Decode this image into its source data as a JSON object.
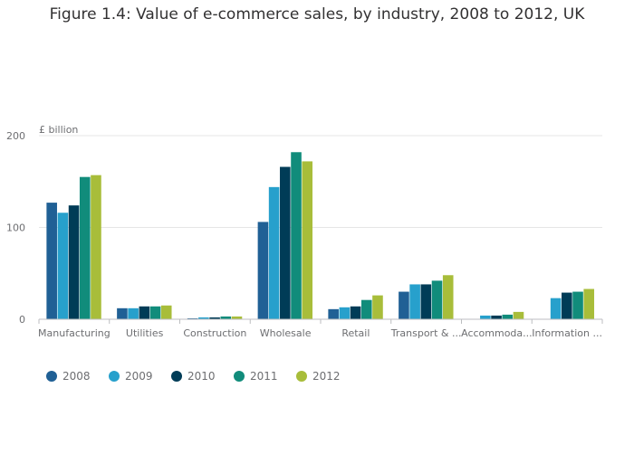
{
  "chart_data": {
    "type": "bar",
    "title": "Figure 1.4: Value of e-commerce sales, by industry, 2008 to 2012, UK",
    "ylabel": "£ billion",
    "xlabel": "",
    "ylim": [
      0,
      200
    ],
    "yticks": [
      0,
      100,
      200
    ],
    "grid": true,
    "legend_position": "bottom-left",
    "categories": [
      "Manufacturing",
      "Utilities",
      "Construction",
      "Wholesale",
      "Retail",
      "Transport & ...",
      "Accommoda...",
      "Information ..."
    ],
    "series": [
      {
        "name": "2008",
        "color": "#206095",
        "values": [
          127,
          12,
          1,
          106,
          11,
          30,
          0,
          0
        ]
      },
      {
        "name": "2009",
        "color": "#27a0cc",
        "values": [
          116,
          12,
          2,
          144,
          13,
          38,
          4,
          23
        ]
      },
      {
        "name": "2010",
        "color": "#003c57",
        "values": [
          124,
          14,
          2,
          166,
          14,
          38,
          4,
          29
        ]
      },
      {
        "name": "2011",
        "color": "#118c7b",
        "values": [
          155,
          14,
          3,
          182,
          21,
          42,
          5,
          30
        ]
      },
      {
        "name": "2012",
        "color": "#a8bd3a",
        "values": [
          157,
          15,
          3,
          172,
          26,
          48,
          8,
          33
        ]
      }
    ]
  }
}
